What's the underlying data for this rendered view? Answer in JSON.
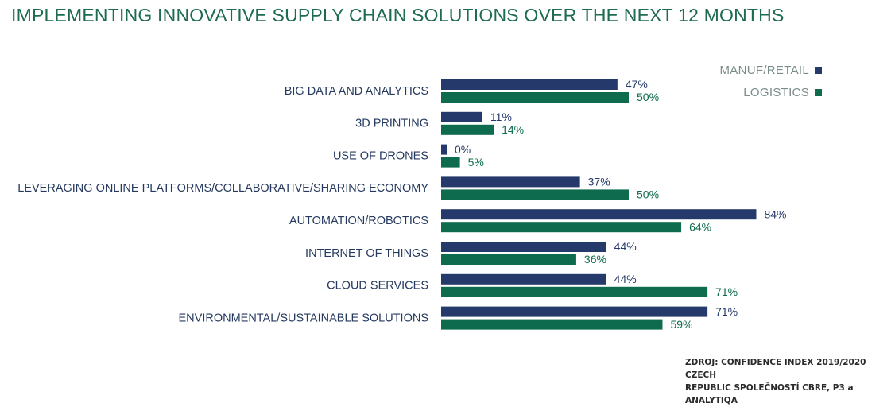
{
  "chart_data": {
    "type": "bar",
    "orientation": "horizontal",
    "title": "IMPLEMENTING INNOVATIVE SUPPLY CHAIN SOLUTIONS OVER THE NEXT 12 MONTHS",
    "categories": [
      "BIG DATA AND ANALYTICS",
      "3D PRINTING",
      "USE OF DRONES",
      "LEVERAGING ONLINE PLATFORMS/COLLABORATIVE/SHARING ECONOMY",
      "AUTOMATION/ROBOTICS",
      "INTERNET OF THINGS",
      "CLOUD SERVICES",
      "ENVIRONMENTAL/SUSTAINABLE SOLUTIONS"
    ],
    "series": [
      {
        "name": "MANUF/RETAIL",
        "color": "#253a6b",
        "values": [
          47,
          11,
          0,
          37,
          84,
          44,
          44,
          71
        ],
        "labels": [
          "47%",
          "11%",
          "0%",
          "37%",
          "84%",
          "44%",
          "44%",
          "71%"
        ]
      },
      {
        "name": "LOGISTICS",
        "color": "#0e6b4e",
        "values": [
          50,
          14,
          5,
          50,
          64,
          36,
          71,
          59
        ],
        "labels": [
          "50%",
          "14%",
          "5%",
          "50%",
          "64%",
          "36%",
          "71%",
          "59%"
        ]
      }
    ],
    "xlim": [
      0,
      100
    ],
    "legend_position": "top-right",
    "grid": false
  },
  "colors": {
    "title": "#1e6b50",
    "category_text": "#253a5e"
  },
  "source": {
    "line1": "ZDROJ: CONFIDENCE INDEX 2019/2020 CZECH",
    "line2": "REPUBLIC SPOLEČNOSTÍ CBRE, P3 a ANALYTIQA"
  }
}
